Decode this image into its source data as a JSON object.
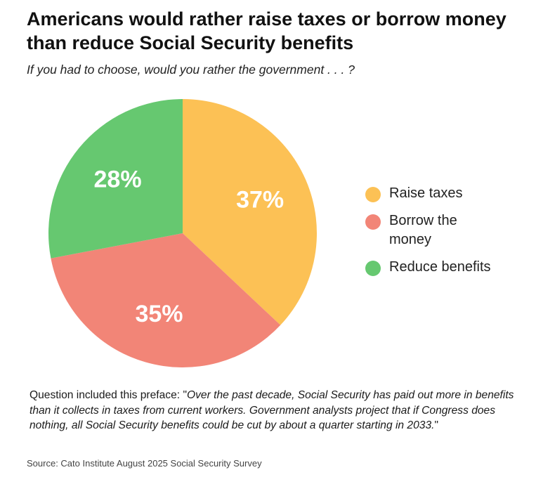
{
  "title": "Americans would rather raise taxes or borrow money than reduce Social Security benefits",
  "subtitle": "If you had to choose, would you rather the government . . . ?",
  "chart_data": {
    "type": "pie",
    "title": "Americans would rather raise taxes or borrow money than reduce Social Security benefits",
    "subtitle": "If you had to choose, would you rather the government . . . ?",
    "categories": [
      "Raise taxes",
      "Borrow the money",
      "Reduce benefits"
    ],
    "values": [
      37,
      35,
      28
    ],
    "labels": [
      "37%",
      "35%",
      "28%"
    ],
    "colors": [
      "#FCC155",
      "#F28577",
      "#66C870"
    ],
    "start": "12 o'clock, clockwise",
    "legend_position": "right"
  },
  "note": {
    "prefix": "Question included this preface: \"",
    "quote": "Over the past decade, Social Security has paid out more in benefits than it collects in taxes from current workers. Government analysts project that if Congress does nothing, all Social Security benefits could be cut by about a quarter starting in 2033.",
    "suffix": "\""
  },
  "source": "Source: Cato Institute August 2025 Social Security Survey"
}
